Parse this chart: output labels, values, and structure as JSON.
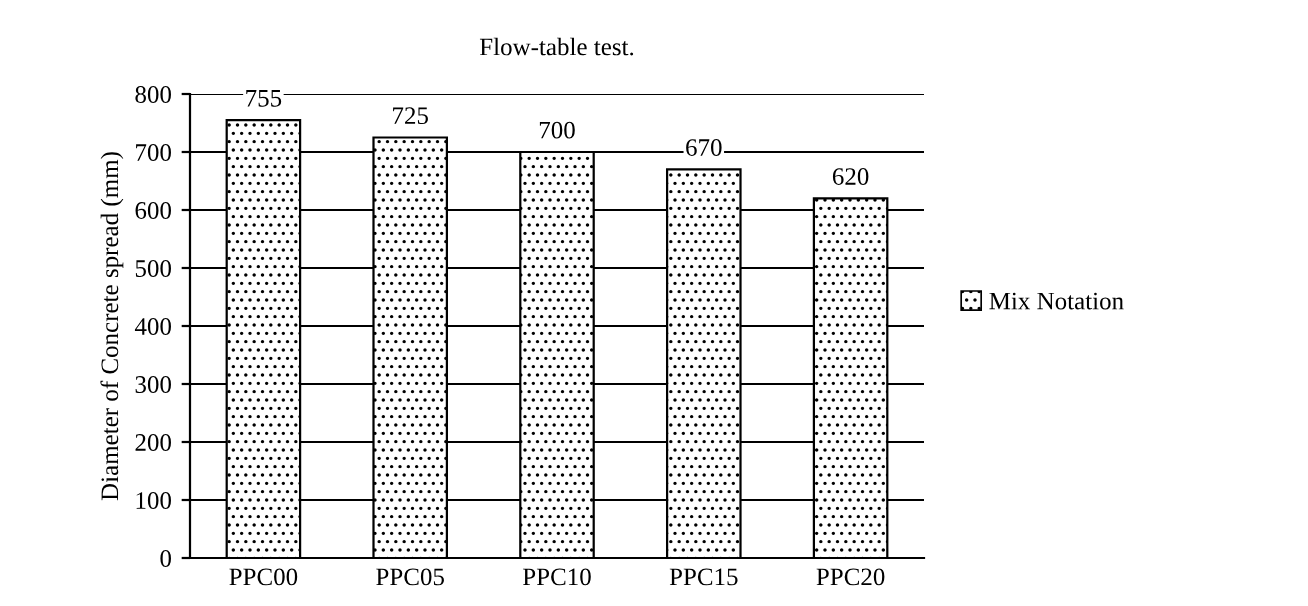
{
  "chart_data": {
    "type": "bar",
    "title": "Flow-table test.",
    "ylabel": "Diameter of Concrete spread (mm)",
    "categories": [
      "PPC00",
      "PPC05",
      "PPC10",
      "PPC15",
      "PPC20"
    ],
    "series": [
      {
        "name": "Mix Notation",
        "color": "#000000",
        "values": [
          755,
          725,
          700,
          670,
          620
        ]
      }
    ],
    "ylim": [
      0,
      800
    ],
    "yticks": [
      0,
      100,
      200,
      300,
      400,
      500,
      600,
      700,
      800
    ],
    "grid": "y",
    "legend": "right",
    "data_labels": true
  }
}
